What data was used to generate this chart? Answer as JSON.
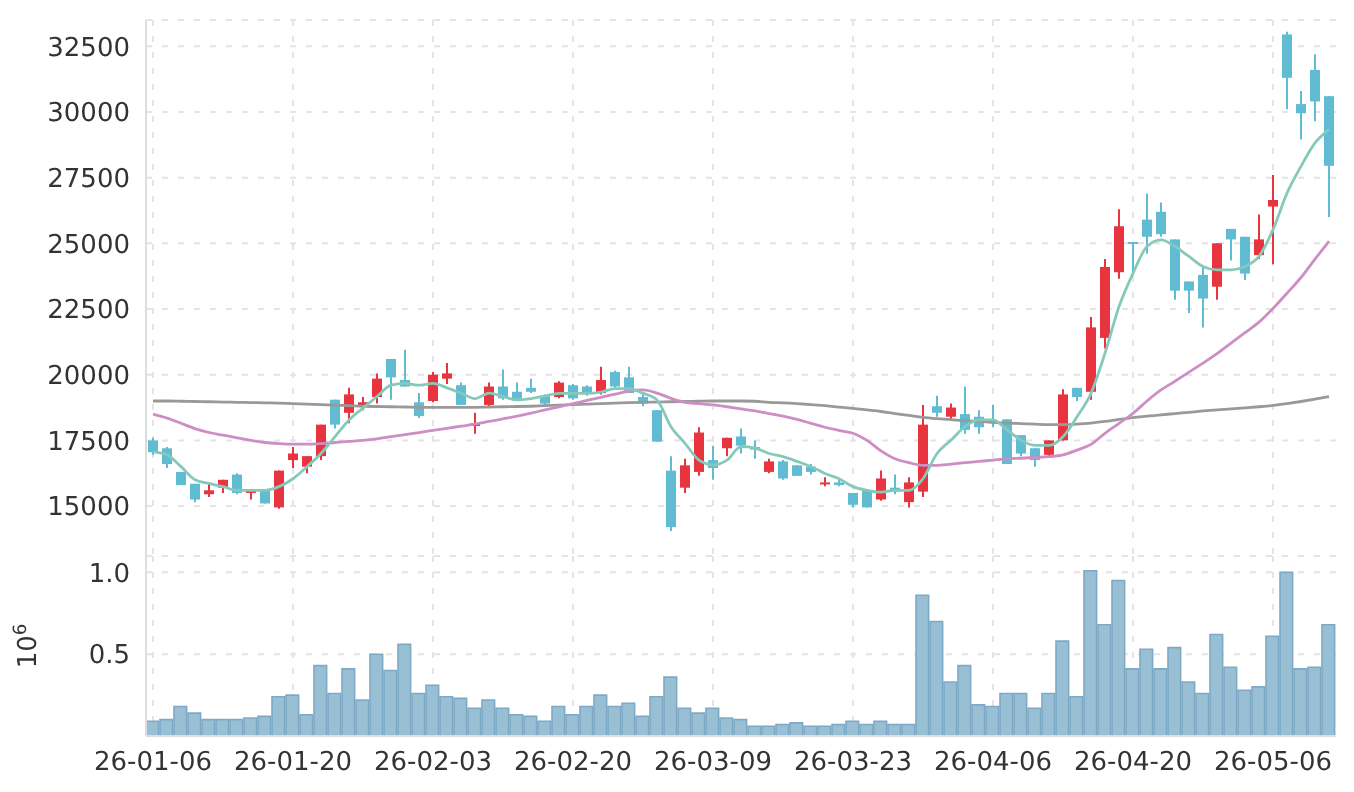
{
  "chart_data": [
    {
      "type": "candlestick",
      "categories": [
        null,
        null,
        null,
        null,
        null,
        null,
        null,
        null,
        null,
        null,
        null,
        null,
        null,
        null,
        null,
        null,
        null,
        null,
        null,
        null,
        null,
        null,
        null,
        null,
        null,
        null,
        null,
        null,
        null,
        null,
        null,
        null,
        null,
        null,
        null,
        null,
        null,
        null,
        null,
        null,
        null,
        null,
        null,
        null,
        null,
        null,
        null,
        null,
        null,
        null,
        null,
        null,
        null,
        null,
        null,
        null,
        null,
        null,
        null,
        null,
        null,
        null,
        null,
        null,
        null,
        null,
        null,
        null,
        null,
        null,
        null,
        null,
        null,
        null,
        null,
        null,
        null,
        null,
        null,
        null,
        null,
        null,
        null,
        null,
        null
      ],
      "ohlc": [
        [
          17500,
          17600,
          16950,
          17050
        ],
        [
          17200,
          17250,
          16450,
          16600
        ],
        [
          16300,
          16300,
          15800,
          15800
        ],
        [
          15850,
          15850,
          15150,
          15250
        ],
        [
          15450,
          15850,
          15350,
          15600
        ],
        [
          15700,
          16000,
          15500,
          16000
        ],
        [
          16200,
          16250,
          15450,
          15500
        ],
        [
          15500,
          15600,
          15250,
          15600
        ],
        [
          15600,
          15600,
          15100,
          15100
        ],
        [
          14950,
          16350,
          14900,
          16350
        ],
        [
          16750,
          17250,
          16450,
          17000
        ],
        [
          16500,
          16900,
          16250,
          16900
        ],
        [
          16900,
          18100,
          16750,
          18100
        ],
        [
          19050,
          19050,
          17950,
          18100
        ],
        [
          18550,
          19500,
          18150,
          19250
        ],
        [
          18800,
          19150,
          18650,
          18950
        ],
        [
          19150,
          20050,
          18900,
          19850
        ],
        [
          20600,
          20600,
          19050,
          19900
        ],
        [
          19800,
          20950,
          19550,
          19550
        ],
        [
          18950,
          19300,
          18350,
          18430
        ],
        [
          19000,
          20100,
          18950,
          20000
        ],
        [
          19850,
          20450,
          19650,
          20050
        ],
        [
          19600,
          19700,
          18850,
          18850
        ],
        [
          18050,
          18550,
          17750,
          18150
        ],
        [
          18850,
          19700,
          18750,
          19550
        ],
        [
          19550,
          20200,
          19050,
          19100
        ],
        [
          19350,
          19700,
          19000,
          19050
        ],
        [
          19500,
          19850,
          19300,
          19350
        ],
        [
          19200,
          19250,
          18850,
          18900
        ],
        [
          19150,
          19750,
          19100,
          19700
        ],
        [
          19600,
          19650,
          19050,
          19100
        ],
        [
          19550,
          19600,
          19200,
          19300
        ],
        [
          19300,
          20300,
          19250,
          19800
        ],
        [
          20100,
          20150,
          19500,
          19550
        ],
        [
          19900,
          20300,
          19300,
          19300
        ],
        [
          19150,
          19300,
          18800,
          18900
        ],
        [
          18650,
          18650,
          17450,
          17450
        ],
        [
          16350,
          16900,
          14050,
          14200
        ],
        [
          15700,
          16800,
          15500,
          16550
        ],
        [
          16300,
          18000,
          16150,
          17800
        ],
        [
          16750,
          17300,
          16000,
          16450
        ],
        [
          17200,
          17600,
          16900,
          17600
        ],
        [
          17650,
          17950,
          17000,
          17300
        ],
        [
          17250,
          17500,
          16800,
          17150
        ],
        [
          16300,
          16800,
          16250,
          16700
        ],
        [
          16700,
          16750,
          16000,
          16050
        ],
        [
          16550,
          16550,
          16150,
          16150
        ],
        [
          16500,
          16600,
          16200,
          16300
        ],
        [
          15850,
          16100,
          15750,
          15900
        ],
        [
          15900,
          16050,
          15750,
          15800
        ],
        [
          15500,
          15500,
          14950,
          15050
        ],
        [
          15600,
          15600,
          14950,
          14950
        ],
        [
          15250,
          16350,
          15200,
          16050
        ],
        [
          15700,
          16200,
          15450,
          15550
        ],
        [
          15150,
          16100,
          14950,
          15900
        ],
        [
          15550,
          18850,
          15350,
          18100
        ],
        [
          18800,
          19200,
          18400,
          18550
        ],
        [
          18400,
          18900,
          18250,
          18750
        ],
        [
          18500,
          19550,
          17750,
          17900
        ],
        [
          18400,
          18650,
          17750,
          18000
        ],
        [
          18250,
          18850,
          18000,
          18150
        ],
        [
          18300,
          18300,
          16600,
          16600
        ],
        [
          17700,
          17700,
          16900,
          17000
        ],
        [
          17200,
          17200,
          16500,
          16750
        ],
        [
          16950,
          17500,
          16900,
          17500
        ],
        [
          17500,
          19450,
          17500,
          19250
        ],
        [
          19500,
          19500,
          19000,
          19150
        ],
        [
          19350,
          22200,
          19050,
          21800
        ],
        [
          21400,
          24400,
          21000,
          24100
        ],
        [
          23900,
          26300,
          23650,
          25650
        ],
        [
          25050,
          25050,
          23850,
          25000
        ],
        [
          25900,
          26900,
          24600,
          25250
        ],
        [
          26200,
          26550,
          25250,
          25350
        ],
        [
          25150,
          25150,
          22850,
          23200
        ],
        [
          23550,
          23550,
          22350,
          23200
        ],
        [
          23800,
          24100,
          21800,
          22900
        ],
        [
          23350,
          25000,
          22850,
          25000
        ],
        [
          25550,
          25550,
          24350,
          25150
        ],
        [
          25250,
          25250,
          23600,
          23850
        ],
        [
          24550,
          26100,
          24400,
          25150
        ],
        [
          26400,
          27600,
          24200,
          26650
        ],
        [
          32950,
          33050,
          30100,
          31300
        ],
        [
          30300,
          30800,
          28950,
          29950
        ],
        [
          31600,
          32200,
          29650,
          30400
        ],
        [
          30600,
          30600,
          26000,
          27950
        ]
      ],
      "colors": [
        "#5fbcd3",
        "#5fbcd3",
        "#5fbcd3",
        "#5fbcd3",
        "#e8343e",
        "#e8343e",
        "#5fbcd3",
        "#e8343e",
        "#5fbcd3",
        "#e8343e",
        "#e8343e",
        "#e8343e",
        "#e8343e",
        "#5fbcd3",
        "#e8343e",
        "#e8343e",
        "#e8343e",
        "#5fbcd3",
        "#5fbcd3",
        "#5fbcd3",
        "#e8343e",
        "#e8343e",
        "#5fbcd3",
        "#e8343e",
        "#e8343e",
        "#5fbcd3",
        "#5fbcd3",
        "#5fbcd3",
        "#5fbcd3",
        "#e8343e",
        "#5fbcd3",
        "#5fbcd3",
        "#e8343e",
        "#5fbcd3",
        "#5fbcd3",
        "#5fbcd3",
        "#5fbcd3",
        "#5fbcd3",
        "#e8343e",
        "#e8343e",
        "#5fbcd3",
        "#e8343e",
        "#5fbcd3",
        "#5fbcd3",
        "#e8343e",
        "#5fbcd3",
        "#5fbcd3",
        "#5fbcd3",
        "#e8343e",
        "#5fbcd3",
        "#5fbcd3",
        "#5fbcd3",
        "#e8343e",
        "#5fbcd3",
        "#e8343e",
        "#e8343e",
        "#5fbcd3",
        "#e8343e",
        "#5fbcd3",
        "#5fbcd3",
        "#5fbcd3",
        "#5fbcd3",
        "#5fbcd3",
        "#5fbcd3",
        "#e8343e",
        "#e8343e",
        "#5fbcd3",
        "#e8343e",
        "#e8343e",
        "#e8343e",
        "#5fbcd3",
        "#5fbcd3",
        "#5fbcd3",
        "#5fbcd3",
        "#5fbcd3",
        "#5fbcd3",
        "#e8343e",
        "#5fbcd3",
        "#5fbcd3",
        "#e8343e",
        "#e8343e",
        "#5fbcd3",
        "#5fbcd3",
        "#5fbcd3",
        "#5fbcd3"
      ],
      "series": [
        {
          "type": "line",
          "color": "#999999",
          "values": [
            19000,
            19000,
            18990,
            18980,
            18970,
            18960,
            18950,
            18940,
            18930,
            18920,
            18900,
            18880,
            18860,
            18840,
            18820,
            18800,
            18790,
            18780,
            18770,
            18760,
            18760,
            18760,
            18760,
            18760,
            18770,
            18780,
            18790,
            18800,
            18820,
            18840,
            18860,
            18880,
            18900,
            18920,
            18940,
            18950,
            18960,
            18970,
            18980,
            18990,
            19000,
            19000,
            19000,
            18990,
            18950,
            18930,
            18900,
            18860,
            18820,
            18770,
            18720,
            18660,
            18600,
            18520,
            18450,
            18380,
            18330,
            18290,
            18250,
            18220,
            18190,
            18160,
            18140,
            18120,
            18100,
            18100,
            18120,
            18160,
            18220,
            18300,
            18370,
            18420,
            18470,
            18520,
            18570,
            18620,
            18660,
            18700,
            18740,
            18780,
            18830,
            18900,
            18980,
            19070,
            19170
          ]
        },
        {
          "type": "line",
          "color": "#cc8ec4",
          "values": [
            18500,
            18350,
            18150,
            17950,
            17800,
            17700,
            17600,
            17500,
            17420,
            17380,
            17360,
            17360,
            17380,
            17420,
            17460,
            17500,
            17560,
            17640,
            17720,
            17800,
            17880,
            17960,
            18040,
            18120,
            18220,
            18320,
            18420,
            18540,
            18660,
            18780,
            18900,
            19020,
            19140,
            19260,
            19380,
            19420,
            19300,
            19100,
            18950,
            18900,
            18850,
            18780,
            18700,
            18620,
            18520,
            18420,
            18300,
            18150,
            18000,
            17880,
            17770,
            17500,
            17100,
            16800,
            16650,
            16550,
            16550,
            16600,
            16650,
            16700,
            16750,
            16800,
            16820,
            16850,
            16880,
            16950,
            17130,
            17350,
            17770,
            18150,
            18530,
            19000,
            19420,
            19750,
            20100,
            20440,
            20800,
            21200,
            21600,
            22000,
            22520,
            23100,
            23700,
            24400,
            25080
          ]
        },
        {
          "type": "line",
          "color": "#86c9bb",
          "values": [
            17060,
            16950,
            16500,
            16000,
            15860,
            15740,
            15600,
            15600,
            15600,
            15740,
            16040,
            16500,
            17000,
            17640,
            18280,
            18730,
            19170,
            19600,
            19670,
            19600,
            19670,
            19500,
            19300,
            19090,
            19300,
            19170,
            19040,
            19090,
            19190,
            19290,
            19290,
            19290,
            19340,
            19470,
            19470,
            19290,
            19040,
            18020,
            17390,
            16750,
            16570,
            16750,
            17260,
            17210,
            17000,
            16880,
            16700,
            16500,
            16240,
            16040,
            15740,
            15600,
            15530,
            15600,
            15600,
            16040,
            17000,
            17510,
            18020,
            18280,
            18280,
            17900,
            17510,
            17310,
            17310,
            17640,
            18400,
            19290,
            20820,
            22590,
            23860,
            24880,
            25130,
            24880,
            24500,
            24120,
            23990,
            23990,
            24120,
            24500,
            25520,
            26910,
            27930,
            28820,
            29330
          ]
        }
      ],
      "ylim": [
        13100,
        33500
      ],
      "yticks": [
        15000,
        17500,
        20000,
        22500,
        25000,
        27500,
        30000,
        32500
      ],
      "grid": true,
      "tick_labels": "y",
      "marker": "none"
    },
    {
      "type": "bar",
      "categories": [
        "26-01-06",
        null,
        null,
        null,
        null,
        null,
        null,
        null,
        null,
        null,
        "26-01-20",
        null,
        null,
        null,
        null,
        null,
        null,
        null,
        null,
        null,
        "26-02-03",
        null,
        null,
        null,
        null,
        null,
        null,
        null,
        null,
        null,
        "26-02-20",
        null,
        null,
        null,
        null,
        null,
        null,
        null,
        null,
        null,
        "26-03-09",
        null,
        null,
        null,
        null,
        null,
        null,
        null,
        null,
        null,
        "26-03-23",
        null,
        null,
        null,
        null,
        null,
        null,
        null,
        null,
        null,
        "26-04-06",
        null,
        null,
        null,
        null,
        null,
        null,
        null,
        null,
        null,
        "26-04-20",
        null,
        null,
        null,
        null,
        null,
        null,
        null,
        null,
        null,
        "26-05-06",
        null,
        null,
        null,
        null
      ],
      "values": [
        0.09,
        0.1,
        0.18,
        0.14,
        0.1,
        0.1,
        0.1,
        0.11,
        0.12,
        0.24,
        0.25,
        0.13,
        0.43,
        0.26,
        0.41,
        0.22,
        0.5,
        0.4,
        0.56,
        0.26,
        0.31,
        0.24,
        0.23,
        0.17,
        0.22,
        0.17,
        0.13,
        0.12,
        0.09,
        0.18,
        0.13,
        0.18,
        0.25,
        0.18,
        0.2,
        0.12,
        0.24,
        0.36,
        0.17,
        0.14,
        0.17,
        0.11,
        0.1,
        0.06,
        0.06,
        0.07,
        0.08,
        0.06,
        0.06,
        0.07,
        0.09,
        0.07,
        0.09,
        0.07,
        0.07,
        0.86,
        0.7,
        0.33,
        0.43,
        0.19,
        0.18,
        0.26,
        0.26,
        0.17,
        0.26,
        0.58,
        0.24,
        1.01,
        0.68,
        0.95,
        0.41,
        0.53,
        0.41,
        0.54,
        0.33,
        0.26,
        0.62,
        0.42,
        0.28,
        0.3,
        0.61,
        1.0,
        0.41,
        0.42,
        0.68
      ],
      "color": "#98bfd4",
      "ylabel": "10$^{6}$",
      "ylim": [
        0,
        1.1
      ],
      "yticks": [
        {
          "value": 0.5,
          "label": "0.5"
        },
        {
          "value": 1,
          "label": "1.0"
        }
      ],
      "grid": true
    }
  ]
}
